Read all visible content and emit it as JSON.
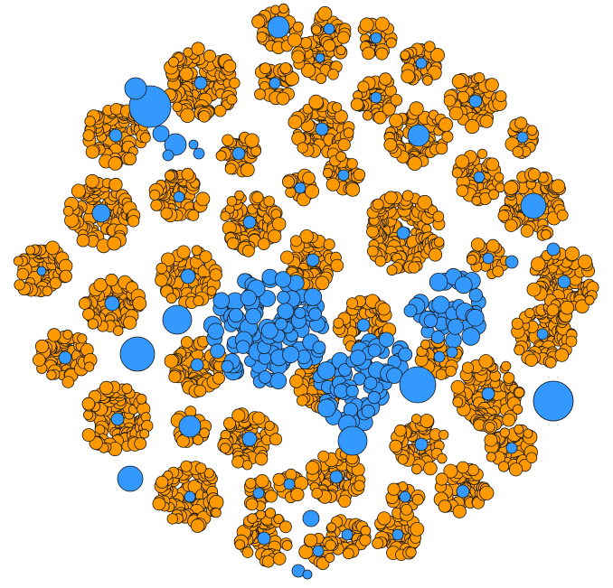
{
  "colors": {
    "background": "#ffffff",
    "orange": "#ff9900",
    "blue": "#3399ff",
    "stroke": "#1a1a1a"
  }
}
